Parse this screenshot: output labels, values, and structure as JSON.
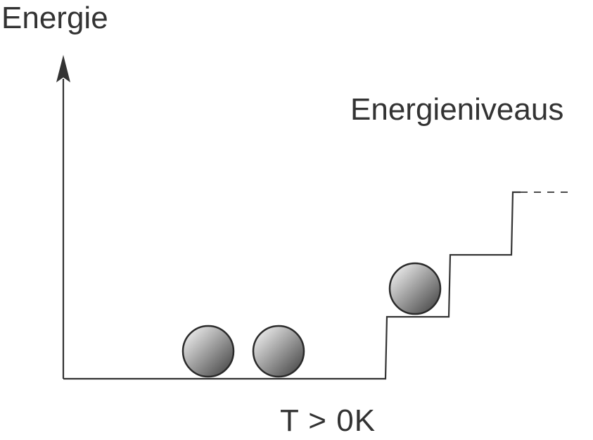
{
  "diagram": {
    "axis_label": "Energie",
    "levels_label": "Energieniveaus",
    "temperature_label": "T > 0K"
  },
  "colors": {
    "line": "#333333",
    "ball_light": "#ffffff",
    "ball_dark": "#3a3a3a"
  },
  "particles": {
    "ground_level_count": 2,
    "first_excited_level_count": 1
  }
}
